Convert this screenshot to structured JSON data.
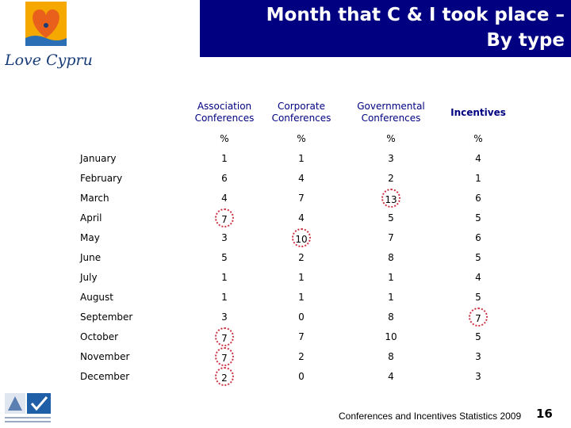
{
  "logo": {
    "text": "Love Cyprus",
    "sun_color": "#f5a800",
    "heart_color": "#e8601c",
    "wave_color": "#2a6fb5"
  },
  "title": {
    "line1": "Month that C & I took place –",
    "line2": "By type"
  },
  "table": {
    "headers": [
      "Association Conferences",
      "Corporate Conferences",
      "Governmental Conferences",
      "Incentives"
    ],
    "unit_row": [
      "%",
      "%",
      "%",
      "%"
    ],
    "rows": [
      {
        "month": "January",
        "values": [
          "1",
          "1",
          "3",
          "4"
        ]
      },
      {
        "month": "February",
        "values": [
          "6",
          "4",
          "2",
          "1"
        ]
      },
      {
        "month": "March",
        "values": [
          "4",
          "7",
          "13",
          "6"
        ]
      },
      {
        "month": "April",
        "values": [
          "7",
          "4",
          "5",
          "5"
        ]
      },
      {
        "month": "May",
        "values": [
          "3",
          "10",
          "7",
          "6"
        ]
      },
      {
        "month": "June",
        "values": [
          "5",
          "2",
          "8",
          "5"
        ]
      },
      {
        "month": "July",
        "values": [
          "1",
          "1",
          "1",
          "4"
        ]
      },
      {
        "month": "August",
        "values": [
          "1",
          "1",
          "1",
          "5"
        ]
      },
      {
        "month": "September",
        "values": [
          "3",
          "0",
          "8",
          "7"
        ]
      },
      {
        "month": "October",
        "values": [
          "7",
          "7",
          "10",
          "5"
        ]
      },
      {
        "month": "November",
        "values": [
          "7",
          "2",
          "8",
          "3"
        ]
      },
      {
        "month": "December",
        "values": [
          "2",
          "0",
          "4",
          "3"
        ]
      }
    ],
    "highlighted_cells": [
      [
        2,
        2
      ],
      [
        3,
        0
      ],
      [
        4,
        1
      ],
      [
        8,
        3
      ],
      [
        9,
        0
      ],
      [
        10,
        0
      ],
      [
        11,
        0
      ]
    ],
    "header_color": "#000080",
    "highlight_color": "#cc3344"
  },
  "footer": {
    "text": "Conferences and Incentives Statistics 2009",
    "page_number": "16"
  }
}
